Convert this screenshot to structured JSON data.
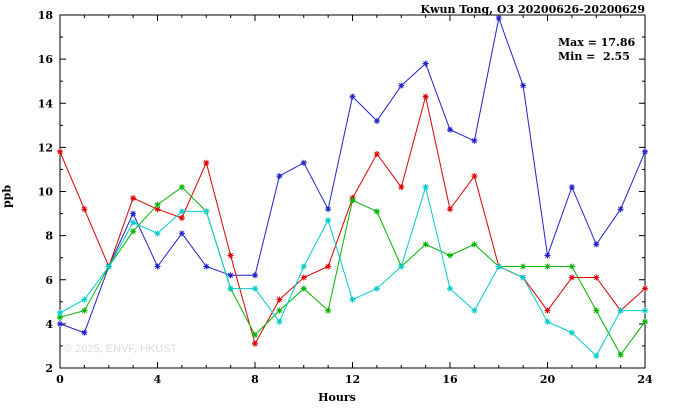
{
  "chart_data": {
    "type": "line",
    "title": "Kwun Tong, O3 20200626-20200629",
    "xlabel": "Hours",
    "ylabel": "ppb",
    "xlim": [
      0,
      24
    ],
    "ylim": [
      2,
      18
    ],
    "x_ticks": [
      0,
      4,
      8,
      12,
      16,
      20,
      24
    ],
    "y_ticks": [
      2,
      4,
      6,
      8,
      10,
      12,
      14,
      16,
      18
    ],
    "grid": false,
    "legend": "none",
    "x": [
      0,
      1,
      2,
      3,
      4,
      5,
      6,
      7,
      8,
      9,
      10,
      11,
      12,
      13,
      14,
      15,
      16,
      17,
      18,
      19,
      20,
      21,
      22,
      23,
      24
    ],
    "series": [
      {
        "name": "blue",
        "color": "#2222cc",
        "values": [
          4.0,
          3.6,
          6.6,
          9.0,
          6.6,
          8.1,
          6.6,
          6.2,
          6.2,
          10.7,
          11.3,
          9.2,
          14.3,
          13.2,
          14.8,
          15.8,
          12.8,
          12.3,
          17.86,
          14.8,
          7.1,
          10.2,
          7.6,
          9.2,
          11.8
        ]
      },
      {
        "name": "red",
        "color": "#dd0000",
        "values": [
          11.8,
          9.2,
          6.6,
          9.7,
          9.2,
          8.8,
          11.3,
          7.1,
          3.1,
          5.1,
          6.1,
          6.6,
          9.7,
          11.7,
          10.2,
          14.3,
          9.2,
          10.7,
          6.6,
          6.1,
          4.6,
          6.1,
          6.1,
          4.6,
          5.6
        ]
      },
      {
        "name": "green",
        "color": "#00b400",
        "values": [
          4.3,
          4.6,
          6.6,
          8.2,
          9.4,
          10.2,
          9.1,
          5.6,
          3.5,
          4.6,
          5.6,
          4.6,
          9.6,
          9.1,
          6.6,
          7.6,
          7.1,
          7.6,
          6.6,
          6.6,
          6.6,
          6.6,
          4.6,
          2.6,
          4.1
        ]
      },
      {
        "name": "cyan",
        "color": "#00cccc",
        "values": [
          4.5,
          5.1,
          6.6,
          8.6,
          8.1,
          9.1,
          9.1,
          5.6,
          5.6,
          4.1,
          6.6,
          8.7,
          5.1,
          5.6,
          6.6,
          10.2,
          5.6,
          4.6,
          6.6,
          6.1,
          4.1,
          3.6,
          2.55,
          4.6,
          4.6
        ]
      }
    ],
    "stats": {
      "max": 17.86,
      "min": 2.55
    }
  },
  "annotations": {
    "max_label": "Max = 17.86",
    "min_label": "Min =  2.55"
  },
  "watermark": "© 2025, ENVF, HKUST"
}
